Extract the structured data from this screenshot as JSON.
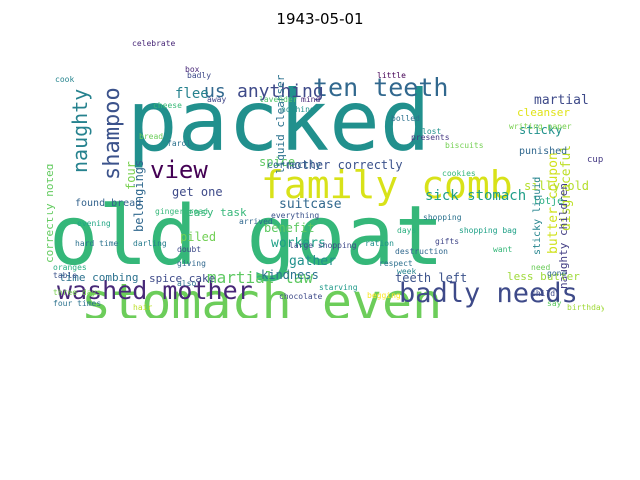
{
  "title": "1943-05-01",
  "words": [
    {
      "text": "packed",
      "color": "#21908d"
    },
    {
      "text": "old goat",
      "color": "#35b779"
    },
    {
      "text": "stomach even",
      "color": "#6ccd5a"
    },
    {
      "text": "family comb",
      "color": "#d8e219"
    },
    {
      "text": "washed mother",
      "color": "#482878"
    },
    {
      "text": "badly needs",
      "color": "#3e4a89"
    },
    {
      "text": "ten teeth",
      "color": "#31688e"
    },
    {
      "text": "shampoo",
      "color": "#3b528b"
    },
    {
      "text": "view",
      "color": "#440154"
    },
    {
      "text": "naughty",
      "color": "#26828e"
    },
    {
      "text": "us",
      "color": "#31688e"
    },
    {
      "text": "anything",
      "color": "#3e4a89"
    },
    {
      "text": "martial law",
      "color": "#5ec962"
    },
    {
      "text": "flee",
      "color": "#26828e"
    },
    {
      "text": "martial",
      "color": "#3e4a89"
    },
    {
      "text": "disgraceful",
      "color": "#bddf26"
    },
    {
      "text": "butter coupon",
      "color": "#d0e11c"
    },
    {
      "text": "sick stomach",
      "color": "#1f9e89"
    },
    {
      "text": "mother correctly",
      "color": "#3b528b"
    },
    {
      "text": "suitcase",
      "color": "#31688e"
    },
    {
      "text": "workers",
      "color": "#1fa187"
    },
    {
      "text": "gather",
      "color": "#21918c"
    },
    {
      "text": "benefit",
      "color": "#5ec962"
    },
    {
      "text": "kindness",
      "color": "#2c728e"
    },
    {
      "text": "belongings",
      "color": "#31688e"
    },
    {
      "text": "four",
      "color": "#7ad151"
    },
    {
      "text": "get one",
      "color": "#3e4a89"
    },
    {
      "text": "spice",
      "color": "#5ec962"
    },
    {
      "text": "piled",
      "color": "#73d056"
    },
    {
      "text": "teeth left",
      "color": "#3b528b"
    },
    {
      "text": "sticky",
      "color": "#21918c"
    },
    {
      "text": "punished",
      "color": "#31688e"
    },
    {
      "text": "silly old",
      "color": "#b5de2b"
    },
    {
      "text": "naughty children",
      "color": "#433e85"
    },
    {
      "text": "lotje",
      "color": "#27ad81"
    },
    {
      "text": "sticky liquid",
      "color": "#25848e"
    },
    {
      "text": "less butter",
      "color": "#9fda3a"
    },
    {
      "text": "correctly noted",
      "color": "#63cb5f"
    },
    {
      "text": "liquid cleanser",
      "color": "#2c728e"
    },
    {
      "text": "cleanser",
      "color": "#e0e318"
    },
    {
      "text": "easy task",
      "color": "#35b779"
    },
    {
      "text": "spice cake",
      "color": "#3e4a89"
    },
    {
      "text": "time combing",
      "color": "#2c728e"
    },
    {
      "text": "correctly",
      "color": "#31688e"
    },
    {
      "text": "found bread",
      "color": "#33638d"
    },
    {
      "text": "writing paper",
      "color": "#7ad151"
    },
    {
      "text": "large shopping",
      "color": "#3e4a89"
    },
    {
      "text": "shopping bag",
      "color": "#1fa187"
    },
    {
      "text": "three days",
      "color": "#7ad151"
    },
    {
      "text": "four times",
      "color": "#2c728e"
    },
    {
      "text": "celebrate",
      "color": "#482878"
    },
    {
      "text": "cupboard",
      "color": "#443983"
    },
    {
      "text": "destruction",
      "color": "#31688e"
    },
    {
      "text": "presents",
      "color": "#453781"
    },
    {
      "text": "gifts",
      "color": "#404688"
    },
    {
      "text": "hard time",
      "color": "#2c728e"
    },
    {
      "text": "hair",
      "color": "#bddf26"
    },
    {
      "text": "chocolate",
      "color": "#3e4a89"
    },
    {
      "text": "cookies",
      "color": "#35b779"
    },
    {
      "text": "biscuits",
      "color": "#75d054"
    },
    {
      "text": "little",
      "color": "#440154"
    },
    {
      "text": "bolled",
      "color": "#2c728e"
    },
    {
      "text": "lost",
      "color": "#21918c"
    },
    {
      "text": "say",
      "color": "#5ec962"
    },
    {
      "text": "want",
      "color": "#35b779"
    },
    {
      "text": "need",
      "color": "#6ccd5a"
    },
    {
      "text": "also",
      "color": "#2c728e"
    },
    {
      "text": "birthday",
      "color": "#a0da39"
    },
    {
      "text": "oranges",
      "color": "#27ad81"
    },
    {
      "text": "darling",
      "color": "#287c8e"
    },
    {
      "text": "table",
      "color": "#3b528b"
    },
    {
      "text": "evening",
      "color": "#22a785"
    },
    {
      "text": "ration",
      "color": "#20928c"
    },
    {
      "text": "doubt",
      "color": "#3e4a89"
    },
    {
      "text": "giving",
      "color": "#31688e"
    },
    {
      "text": "respect",
      "color": "#2d708e"
    },
    {
      "text": "starving",
      "color": "#1f9a8a"
    },
    {
      "text": "begging",
      "color": "#fde725"
    },
    {
      "text": "everything",
      "color": "#3b528b"
    },
    {
      "text": "gone",
      "color": "#31688e"
    },
    {
      "text": "week",
      "color": "#26828e"
    },
    {
      "text": "box",
      "color": "#482878"
    },
    {
      "text": "badly",
      "color": "#3e4a89"
    },
    {
      "text": "cook",
      "color": "#25848e"
    },
    {
      "text": "farol",
      "color": "#2c728e"
    },
    {
      "text": "cheese",
      "color": "#38b977"
    },
    {
      "text": "away",
      "color": "#404688"
    },
    {
      "text": "gingerbread",
      "color": "#35b779"
    },
    {
      "text": "arrived",
      "color": "#31688e"
    },
    {
      "text": "shopping",
      "color": "#2c728e"
    },
    {
      "text": "lavender",
      "color": "#50c46a"
    },
    {
      "text": "nothing",
      "color": "#21918c"
    },
    {
      "text": "bread",
      "color": "#6ccd5a"
    },
    {
      "text": "mind",
      "color": "#482878"
    },
    {
      "text": "child",
      "color": "#3e4a89"
    },
    {
      "text": "days",
      "color": "#29af7f"
    }
  ]
}
